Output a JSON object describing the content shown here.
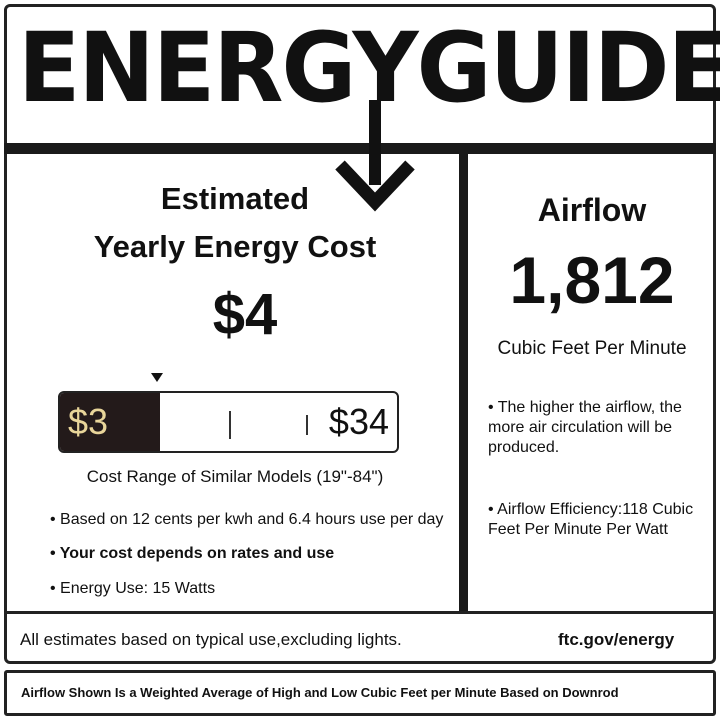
{
  "header": {
    "title": "ENERGYGUIDE"
  },
  "cost": {
    "heading_line1": "Estimated",
    "heading_line2": "Yearly Energy Cost",
    "value": "$4",
    "range_low": "$3",
    "range_high": "$34",
    "range_caption": "Cost Range of Similar Models (19\"-84\")",
    "bullets": [
      "• Based on 12 cents per kwh and 6.4 hours use per day",
      "• Your cost depends on rates and use",
      "• Energy Use: 15 Watts"
    ]
  },
  "airflow": {
    "heading": "Airflow",
    "value": "1,812",
    "unit": "Cubic Feet Per Minute",
    "note": "• The higher the airflow, the more air circulation will be produced.",
    "efficiency": "• Airflow Efficiency:118 Cubic Feet Per Minute Per Watt"
  },
  "footer": {
    "note": "All estimates based on typical use,excluding lights.",
    "link": "ftc.gov/energy"
  },
  "disclaimer": "Airflow Shown Is a Weighted Average of High and Low Cubic Feet per Minute Based on Downrod",
  "colors": {
    "range_low_text": "#e8d59a",
    "bar_dark": "#231a1a"
  }
}
